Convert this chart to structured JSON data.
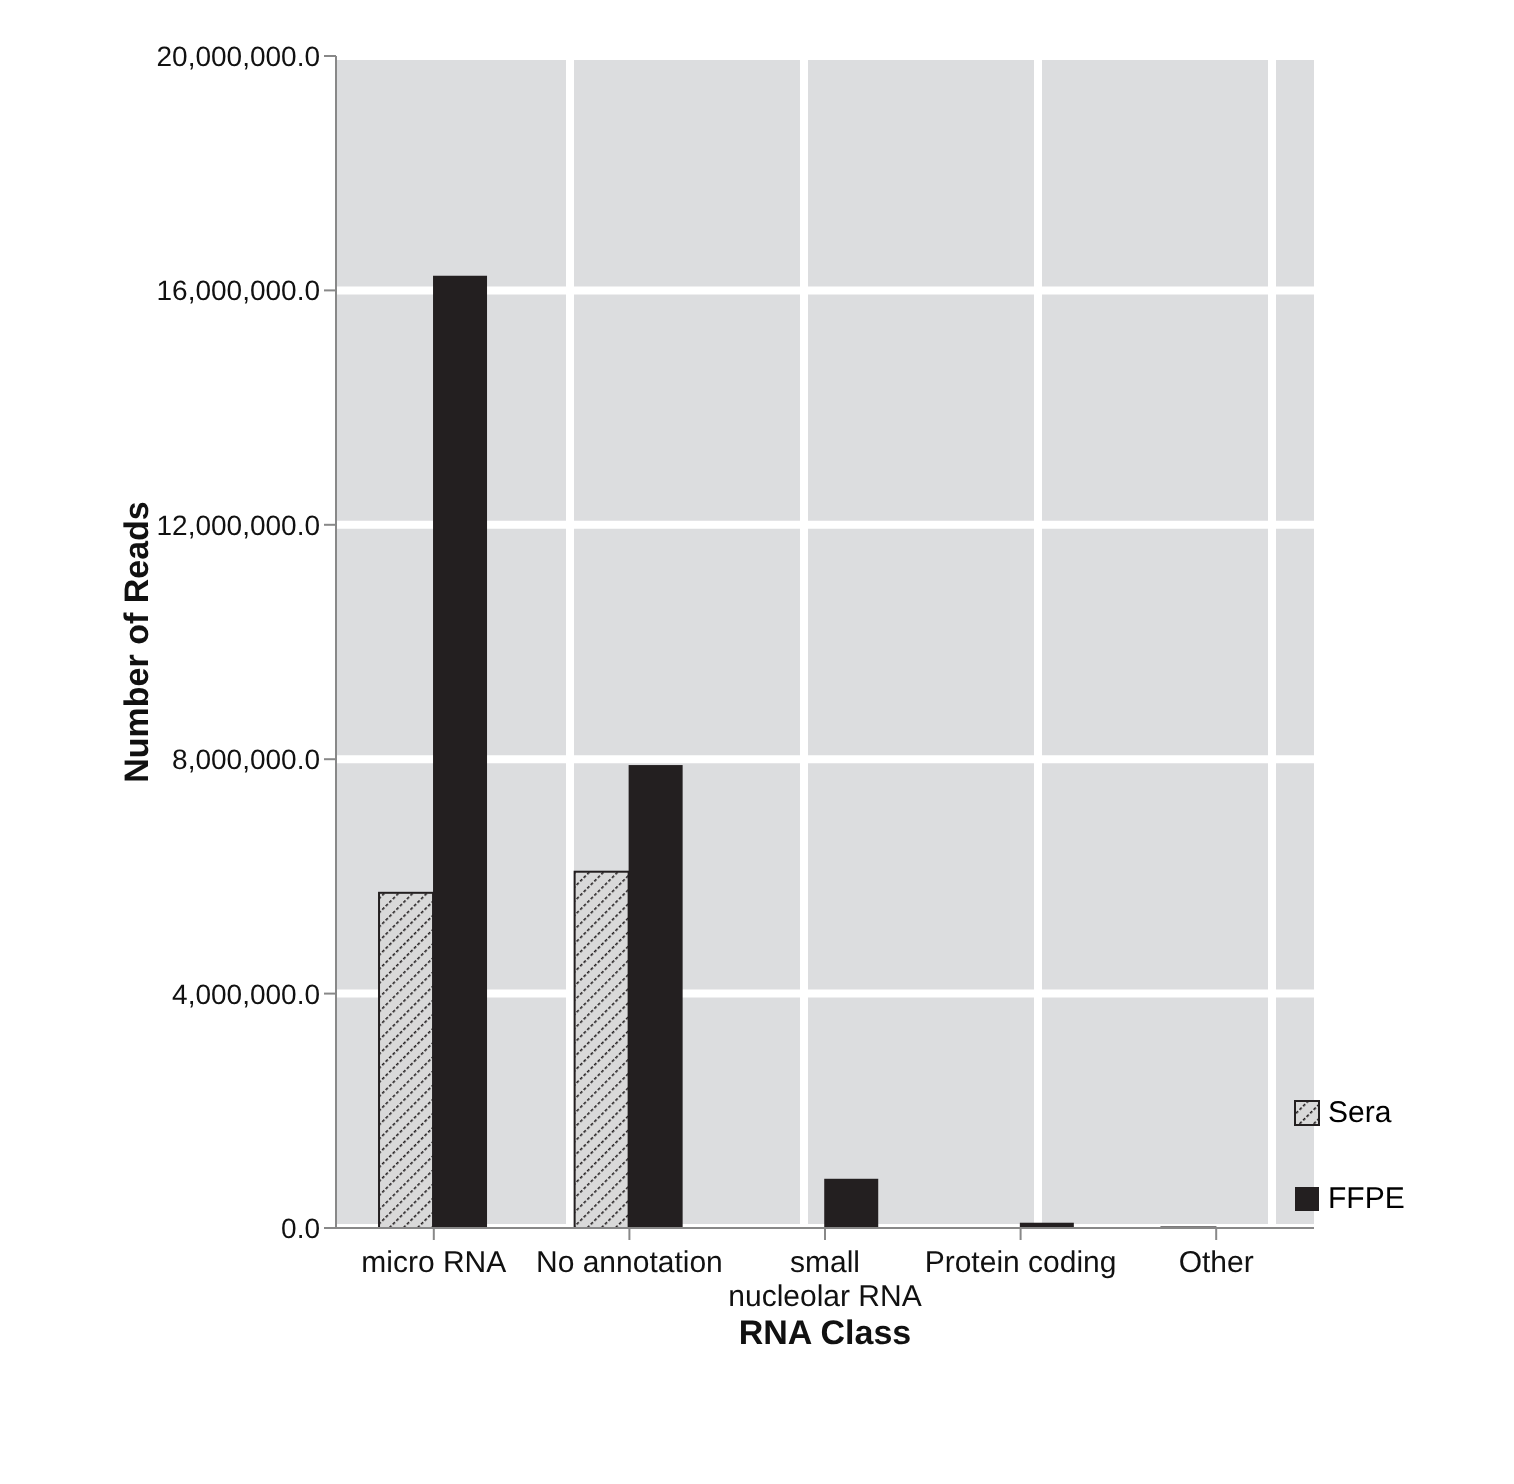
{
  "chart_data": {
    "type": "bar",
    "xlabel": "RNA Class",
    "ylabel": "Number of Reads",
    "categories": [
      "micro RNA",
      "No annotation",
      "small nucleolar RNA",
      "Protein coding",
      "Other"
    ],
    "series": [
      {
        "name": "Sera",
        "color": "#d9d9d9",
        "values": [
          5720000,
          6080000,
          null,
          null,
          10000
        ]
      },
      {
        "name": "FFPE",
        "color": "#231f20",
        "values": [
          16250000,
          7900000,
          840000,
          90000,
          null
        ]
      }
    ],
    "ylim": [
      0,
      20000000
    ],
    "yticks": [
      {
        "value": 0,
        "label": "0.0"
      },
      {
        "value": 4000000,
        "label": "4,000,000.0"
      },
      {
        "value": 8000000,
        "label": "8,000,000.0"
      },
      {
        "value": 12000000,
        "label": "12,000,000.0"
      },
      {
        "value": 16000000,
        "label": "16,000,000.0"
      },
      {
        "value": 20000000,
        "label": "20,000,000.0"
      }
    ],
    "grid": true,
    "legend": "bottom right"
  }
}
